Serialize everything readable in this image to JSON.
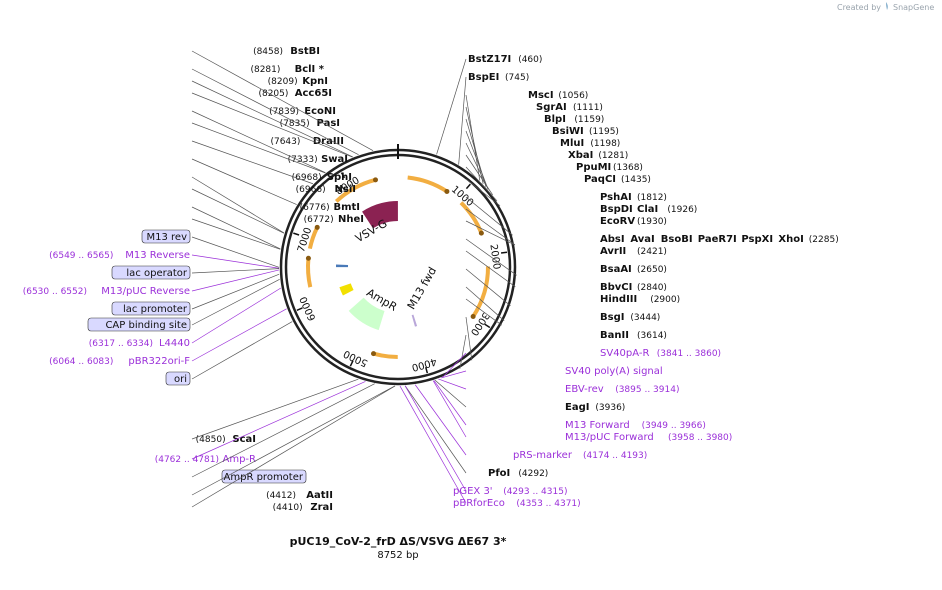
{
  "credit": {
    "text": "Created by",
    "brand": "SnapGene",
    "logo_icon": "snapgene-logo-icon"
  },
  "plasmid": {
    "name": "pUC19_CoV-2_frD ΔS/VSVG ΔE67 3*",
    "length_label": "8752 bp",
    "length": 8752
  },
  "ring_ticks": [
    "1000",
    "2000",
    "3000",
    "4000",
    "5000",
    "6000",
    "7000",
    "8000"
  ],
  "features": [
    {
      "name": "VSV-G",
      "color": "#8b2252",
      "start": 7950,
      "end": 8750,
      "direction": "forward"
    },
    {
      "name": "AmpR",
      "color": "#ccffcc",
      "start": 4790,
      "end": 5550,
      "direction": "reverse"
    },
    {
      "name": "M13 fwd",
      "color": "#b9a7d9",
      "start": 3940,
      "end": 3990,
      "direction": "forward"
    },
    {
      "name": "",
      "color": "#f2e000",
      "start": 5900,
      "end": 6100,
      "direction": "reverse"
    },
    {
      "name": "",
      "color": "#4a7ab8",
      "start": 6560,
      "end": 6620,
      "direction": "forward"
    }
  ],
  "orfs": [
    {
      "start": 150,
      "end": 800
    },
    {
      "start": 1080,
      "end": 1650
    },
    {
      "start": 2180,
      "end": 3000
    },
    {
      "start": 4380,
      "end": 4760
    },
    {
      "start": 6250,
      "end": 6700
    },
    {
      "start": 6850,
      "end": 7200
    },
    {
      "start": 7700,
      "end": 8400
    }
  ],
  "right_labels": [
    {
      "items": [
        {
          "name": "BstZ17I",
          "pos": "(460)"
        }
      ]
    },
    {
      "items": [
        {
          "name": "BspEI",
          "pos": "(745)"
        }
      ]
    },
    {
      "items": [
        {
          "name": "MscI",
          "pos": "(1056)"
        }
      ]
    },
    {
      "items": [
        {
          "name": "SgrAI",
          "pos": "(1111)"
        }
      ]
    },
    {
      "items": [
        {
          "name": "BlpI",
          "pos": "(1159)"
        }
      ]
    },
    {
      "items": [
        {
          "name": "BsiWI",
          "pos": "(1195)"
        }
      ]
    },
    {
      "items": [
        {
          "name": "MluI",
          "pos": "(1198)"
        }
      ]
    },
    {
      "items": [
        {
          "name": "XbaI",
          "pos": "(1281)"
        }
      ]
    },
    {
      "items": [
        {
          "name": "PpuMI",
          "pos": "(1368)"
        }
      ]
    },
    {
      "items": [
        {
          "name": "PaqCI",
          "pos": "(1435)"
        }
      ]
    },
    {
      "items": [
        {
          "name": "PshAI",
          "pos": "(1812)"
        }
      ]
    },
    {
      "items": [
        {
          "name": "BspDI",
          "pos": ""
        },
        {
          "name": "ClaI",
          "pos": "(1926)"
        }
      ]
    },
    {
      "items": [
        {
          "name": "EcoRV",
          "pos": "(1930)"
        }
      ]
    },
    {
      "items": [
        {
          "name": "AbsI",
          "pos": ""
        },
        {
          "name": "AvaI",
          "pos": ""
        },
        {
          "name": "BsoBI",
          "pos": ""
        },
        {
          "name": "PaeR7I",
          "pos": ""
        },
        {
          "name": "PspXI",
          "pos": ""
        },
        {
          "name": "XhoI",
          "pos": "(2285)"
        }
      ]
    },
    {
      "items": [
        {
          "name": "AvrII",
          "pos": "(2421)"
        }
      ]
    },
    {
      "items": [
        {
          "name": "BsaAI",
          "pos": "(2650)"
        }
      ]
    },
    {
      "items": [
        {
          "name": "BbvCI",
          "pos": "(2840)"
        }
      ]
    },
    {
      "items": [
        {
          "name": "HindIII",
          "pos": "(2900)"
        }
      ]
    },
    {
      "items": [
        {
          "name": "BsgI",
          "pos": "(3444)"
        }
      ]
    },
    {
      "items": [
        {
          "name": "BanII",
          "pos": "(3614)"
        }
      ]
    },
    {
      "items": [
        {
          "name": "SV40pA-R",
          "pos": "(3841 .. 3860)"
        }
      ]
    },
    {
      "items": [
        {
          "name": "SV40 poly(A) signal",
          "pos": ""
        }
      ]
    },
    {
      "items": [
        {
          "name": "EBV-rev",
          "pos": "(3895 .. 3914)"
        }
      ]
    },
    {
      "items": [
        {
          "name": "EagI",
          "pos": "(3936)"
        }
      ]
    },
    {
      "items": [
        {
          "name": "M13 Forward",
          "pos": "(3949 .. 3966)"
        }
      ]
    },
    {
      "items": [
        {
          "name": "M13/pUC Forward",
          "pos": "(3958 .. 3980)"
        }
      ]
    },
    {
      "items": [
        {
          "name": "pRS-marker",
          "pos": "(4174 .. 4193)"
        }
      ]
    },
    {
      "items": [
        {
          "name": "PfoI",
          "pos": "(4292)"
        }
      ]
    },
    {
      "items": [
        {
          "name": "pGEX 3'",
          "pos": "(4293 .. 4315)"
        }
      ]
    },
    {
      "items": [
        {
          "name": "pBRforEco",
          "pos": "(4353 .. 4371)"
        }
      ]
    }
  ],
  "left_labels": [
    {
      "name": "BstBI",
      "pos": "(8458)"
    },
    {
      "name": "BclI *",
      "pos": "(8281)"
    },
    {
      "name": "KpnI",
      "pos": "(8209)"
    },
    {
      "name": "Acc65I",
      "pos": "(8205)"
    },
    {
      "name": "EcoNI",
      "pos": "(7839)"
    },
    {
      "name": "PasI",
      "pos": "(7835)"
    },
    {
      "name": "DraIII",
      "pos": "(7643)"
    },
    {
      "name": "SwaI",
      "pos": "(7333)"
    },
    {
      "name": "SphI",
      "pos": "(6968)"
    },
    {
      "name": "NsiI",
      "pos": "(6966)"
    },
    {
      "name": "BmtI",
      "pos": "(6776)"
    },
    {
      "name": "NheI",
      "pos": "(6772)"
    },
    {
      "name": "M13 rev",
      "pos": ""
    },
    {
      "name": "M13 Reverse",
      "pos": "(6549 .. 6565)"
    },
    {
      "name": "lac operator",
      "pos": ""
    },
    {
      "name": "M13/pUC Reverse",
      "pos": "(6530 .. 6552)"
    },
    {
      "name": "lac promoter",
      "pos": ""
    },
    {
      "name": "CAP binding site",
      "pos": ""
    },
    {
      "name": "L4440",
      "pos": "(6317 .. 6334)"
    },
    {
      "name": "pBR322ori-F",
      "pos": "(6064 .. 6083)"
    },
    {
      "name": "ori",
      "pos": ""
    },
    {
      "name": "ScaI",
      "pos": "(4850)"
    },
    {
      "name": "Amp-R",
      "pos": "(4762 .. 4781)"
    },
    {
      "name": "AmpR promoter",
      "pos": ""
    },
    {
      "name": "AatII",
      "pos": "(4412)"
    },
    {
      "name": "ZraI",
      "pos": "(4410)"
    }
  ],
  "colors": {
    "enzyme": "#111111",
    "primer": "#9b30d9",
    "orf": "#f0a020",
    "box_lac_operator": "#a8cce0",
    "box_m13_rev": "#d9a8f0",
    "box_cap": "#a8d8e8",
    "box_ori": "#f2f200",
    "box_sv40": "#c8c8c8",
    "box_white": "#ffffff"
  }
}
